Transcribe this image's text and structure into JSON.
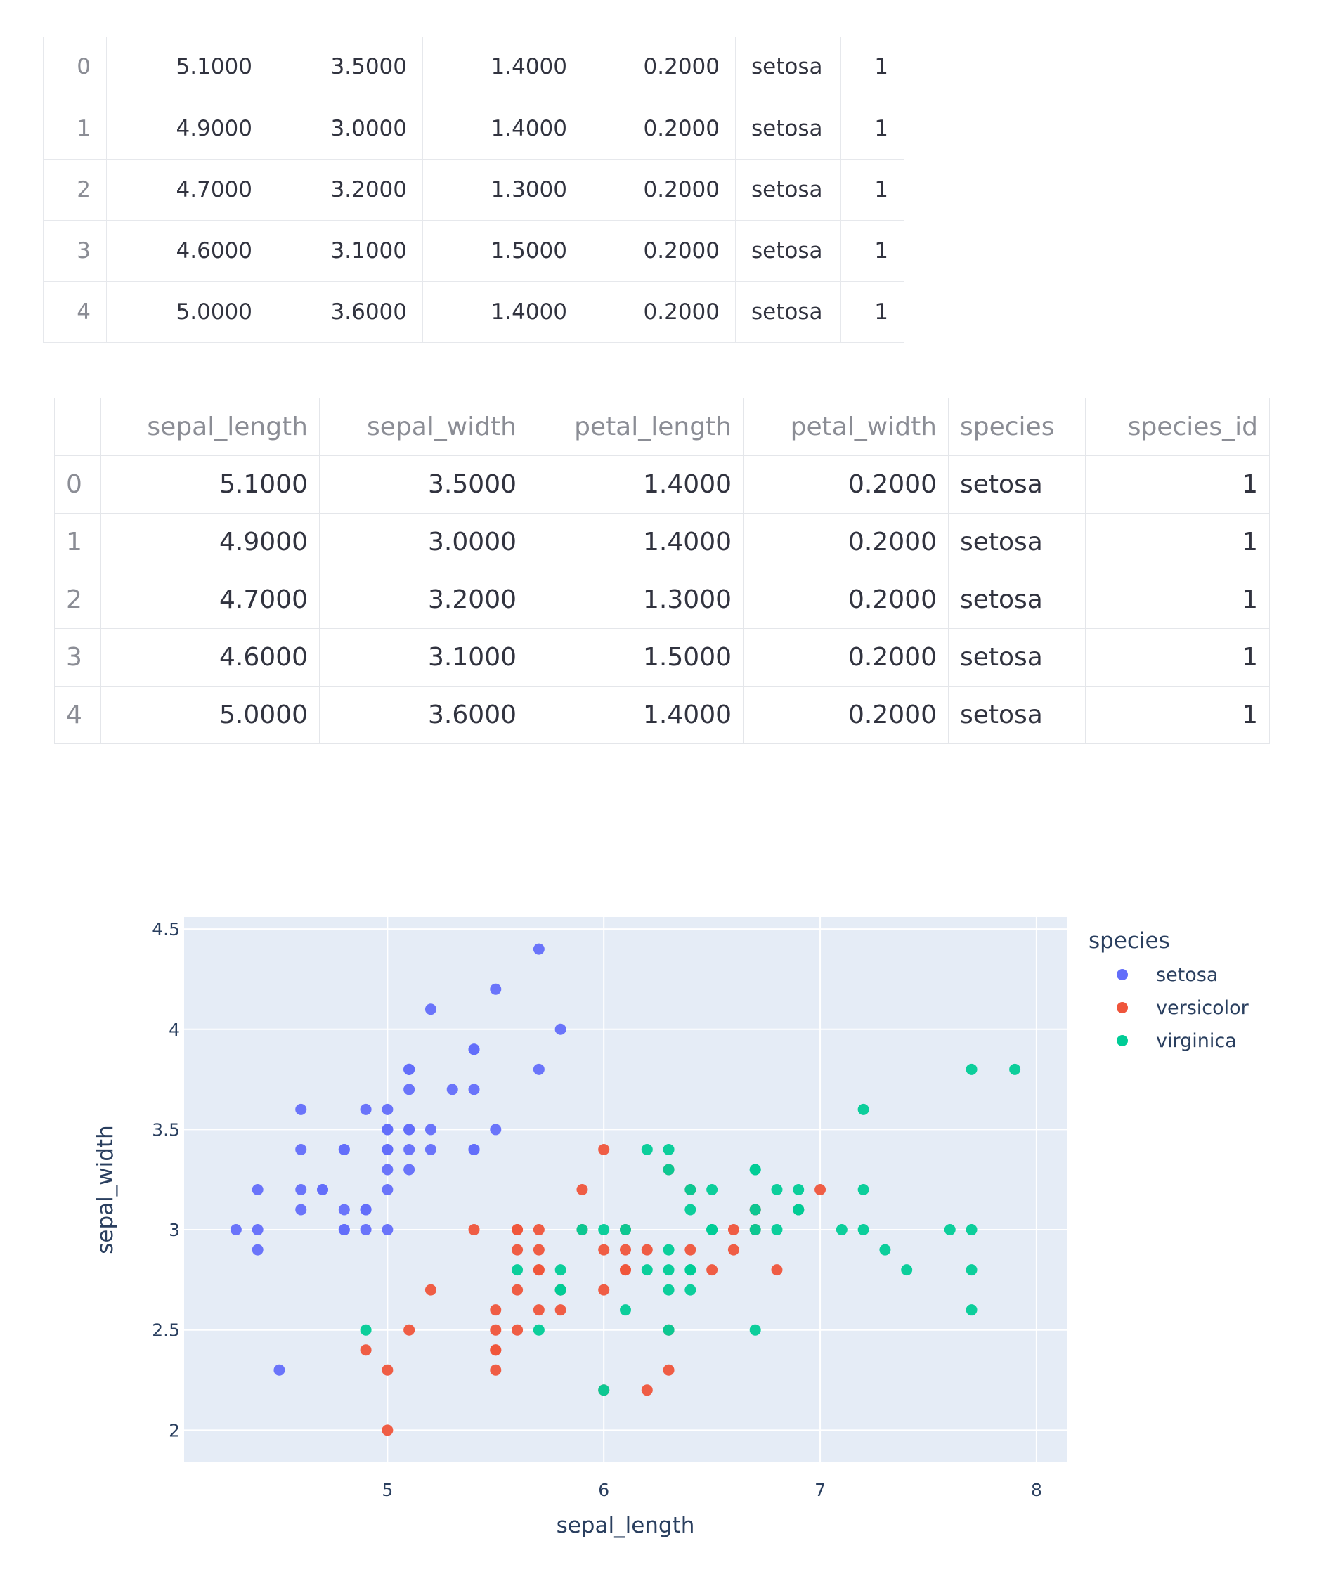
{
  "table_top": {
    "rows": [
      {
        "index": "0",
        "sepal_length": "5.1000",
        "sepal_width": "3.5000",
        "petal_length": "1.4000",
        "petal_width": "0.2000",
        "species": "setosa",
        "species_id": "1"
      },
      {
        "index": "1",
        "sepal_length": "4.9000",
        "sepal_width": "3.0000",
        "petal_length": "1.4000",
        "petal_width": "0.2000",
        "species": "setosa",
        "species_id": "1"
      },
      {
        "index": "2",
        "sepal_length": "4.7000",
        "sepal_width": "3.2000",
        "petal_length": "1.3000",
        "petal_width": "0.2000",
        "species": "setosa",
        "species_id": "1"
      },
      {
        "index": "3",
        "sepal_length": "4.6000",
        "sepal_width": "3.1000",
        "petal_length": "1.5000",
        "petal_width": "0.2000",
        "species": "setosa",
        "species_id": "1"
      },
      {
        "index": "4",
        "sepal_length": "5.0000",
        "sepal_width": "3.6000",
        "petal_length": "1.4000",
        "petal_width": "0.2000",
        "species": "setosa",
        "species_id": "1"
      }
    ]
  },
  "table_main": {
    "headers": [
      "",
      "sepal_length",
      "sepal_width",
      "petal_length",
      "petal_width",
      "species",
      "species_id"
    ],
    "rows": [
      {
        "index": "0",
        "sepal_length": "5.1000",
        "sepal_width": "3.5000",
        "petal_length": "1.4000",
        "petal_width": "0.2000",
        "species": "setosa",
        "species_id": "1"
      },
      {
        "index": "1",
        "sepal_length": "4.9000",
        "sepal_width": "3.0000",
        "petal_length": "1.4000",
        "petal_width": "0.2000",
        "species": "setosa",
        "species_id": "1"
      },
      {
        "index": "2",
        "sepal_length": "4.7000",
        "sepal_width": "3.2000",
        "petal_length": "1.3000",
        "petal_width": "0.2000",
        "species": "setosa",
        "species_id": "1"
      },
      {
        "index": "3",
        "sepal_length": "4.6000",
        "sepal_width": "3.1000",
        "petal_length": "1.5000",
        "petal_width": "0.2000",
        "species": "setosa",
        "species_id": "1"
      },
      {
        "index": "4",
        "sepal_length": "5.0000",
        "sepal_width": "3.6000",
        "petal_length": "1.4000",
        "petal_width": "0.2000",
        "species": "setosa",
        "species_id": "1"
      }
    ]
  },
  "chart_data": {
    "type": "scatter",
    "xlabel": "sepal_length",
    "ylabel": "sepal_width",
    "xlim": [
      4.06,
      8.14
    ],
    "ylim": [
      1.84,
      4.56
    ],
    "x_ticks": [
      "5",
      "6",
      "7",
      "8"
    ],
    "y_ticks": [
      "2",
      "2.5",
      "3",
      "3.5",
      "4",
      "4.5"
    ],
    "grid": true,
    "plot_bg": "#e5ecf6",
    "legend": {
      "title": "species",
      "placement": "right"
    },
    "series": [
      {
        "name": "setosa",
        "color": "#636efa",
        "points": [
          [
            5.1,
            3.5
          ],
          [
            4.9,
            3.0
          ],
          [
            4.7,
            3.2
          ],
          [
            4.6,
            3.1
          ],
          [
            5.0,
            3.6
          ],
          [
            5.4,
            3.9
          ],
          [
            4.6,
            3.4
          ],
          [
            5.0,
            3.4
          ],
          [
            4.4,
            2.9
          ],
          [
            4.9,
            3.1
          ],
          [
            5.4,
            3.7
          ],
          [
            4.8,
            3.4
          ],
          [
            4.8,
            3.0
          ],
          [
            4.3,
            3.0
          ],
          [
            5.8,
            4.0
          ],
          [
            5.7,
            4.4
          ],
          [
            5.4,
            3.9
          ],
          [
            5.1,
            3.5
          ],
          [
            5.7,
            3.8
          ],
          [
            5.1,
            3.8
          ],
          [
            5.4,
            3.4
          ],
          [
            5.1,
            3.7
          ],
          [
            4.6,
            3.6
          ],
          [
            5.1,
            3.3
          ],
          [
            4.8,
            3.4
          ],
          [
            5.0,
            3.0
          ],
          [
            5.0,
            3.4
          ],
          [
            5.2,
            3.5
          ],
          [
            5.2,
            3.4
          ],
          [
            4.7,
            3.2
          ],
          [
            4.8,
            3.1
          ],
          [
            5.4,
            3.4
          ],
          [
            5.2,
            4.1
          ],
          [
            5.5,
            4.2
          ],
          [
            4.9,
            3.1
          ],
          [
            5.0,
            3.2
          ],
          [
            5.5,
            3.5
          ],
          [
            4.9,
            3.6
          ],
          [
            4.4,
            3.0
          ],
          [
            5.1,
            3.4
          ],
          [
            5.0,
            3.5
          ],
          [
            4.5,
            2.3
          ],
          [
            4.4,
            3.2
          ],
          [
            5.0,
            3.5
          ],
          [
            5.1,
            3.8
          ],
          [
            4.8,
            3.0
          ],
          [
            5.1,
            3.8
          ],
          [
            4.6,
            3.2
          ],
          [
            5.3,
            3.7
          ],
          [
            5.0,
            3.3
          ]
        ]
      },
      {
        "name": "versicolor",
        "color": "#ef553b",
        "points": [
          [
            7.0,
            3.2
          ],
          [
            6.4,
            3.2
          ],
          [
            6.9,
            3.1
          ],
          [
            5.5,
            2.3
          ],
          [
            6.5,
            2.8
          ],
          [
            5.7,
            2.8
          ],
          [
            6.3,
            3.3
          ],
          [
            4.9,
            2.4
          ],
          [
            6.6,
            2.9
          ],
          [
            5.2,
            2.7
          ],
          [
            5.0,
            2.0
          ],
          [
            5.9,
            3.0
          ],
          [
            6.0,
            2.2
          ],
          [
            6.1,
            2.9
          ],
          [
            5.6,
            2.9
          ],
          [
            6.7,
            3.1
          ],
          [
            5.6,
            3.0
          ],
          [
            5.8,
            2.7
          ],
          [
            6.2,
            2.2
          ],
          [
            5.6,
            2.5
          ],
          [
            5.9,
            3.2
          ],
          [
            6.1,
            2.8
          ],
          [
            6.3,
            2.5
          ],
          [
            6.1,
            2.8
          ],
          [
            6.4,
            2.9
          ],
          [
            6.6,
            3.0
          ],
          [
            6.8,
            2.8
          ],
          [
            6.7,
            3.0
          ],
          [
            6.0,
            2.9
          ],
          [
            5.7,
            2.6
          ],
          [
            5.5,
            2.4
          ],
          [
            5.5,
            2.4
          ],
          [
            5.8,
            2.7
          ],
          [
            6.0,
            2.7
          ],
          [
            5.4,
            3.0
          ],
          [
            6.0,
            3.4
          ],
          [
            6.7,
            3.1
          ],
          [
            6.3,
            2.3
          ],
          [
            5.6,
            3.0
          ],
          [
            5.5,
            2.5
          ],
          [
            5.5,
            2.6
          ],
          [
            6.1,
            3.0
          ],
          [
            5.8,
            2.6
          ],
          [
            5.0,
            2.3
          ],
          [
            5.6,
            2.7
          ],
          [
            5.7,
            3.0
          ],
          [
            5.7,
            2.9
          ],
          [
            6.2,
            2.9
          ],
          [
            5.1,
            2.5
          ],
          [
            5.7,
            2.8
          ]
        ]
      },
      {
        "name": "virginica",
        "color": "#00cc96",
        "points": [
          [
            6.3,
            3.3
          ],
          [
            5.8,
            2.7
          ],
          [
            7.1,
            3.0
          ],
          [
            6.3,
            2.9
          ],
          [
            6.5,
            3.0
          ],
          [
            7.6,
            3.0
          ],
          [
            4.9,
            2.5
          ],
          [
            7.3,
            2.9
          ],
          [
            6.7,
            2.5
          ],
          [
            7.2,
            3.6
          ],
          [
            6.5,
            3.2
          ],
          [
            6.4,
            2.7
          ],
          [
            6.8,
            3.0
          ],
          [
            5.7,
            2.5
          ],
          [
            5.8,
            2.8
          ],
          [
            6.4,
            3.2
          ],
          [
            6.5,
            3.0
          ],
          [
            7.7,
            3.8
          ],
          [
            7.7,
            2.6
          ],
          [
            6.0,
            2.2
          ],
          [
            6.9,
            3.2
          ],
          [
            5.6,
            2.8
          ],
          [
            7.7,
            2.8
          ],
          [
            6.3,
            2.7
          ],
          [
            6.7,
            3.3
          ],
          [
            7.2,
            3.2
          ],
          [
            6.2,
            2.8
          ],
          [
            6.1,
            3.0
          ],
          [
            6.4,
            2.8
          ],
          [
            7.2,
            3.0
          ],
          [
            7.4,
            2.8
          ],
          [
            7.9,
            3.8
          ],
          [
            6.4,
            2.8
          ],
          [
            6.3,
            2.8
          ],
          [
            6.1,
            2.6
          ],
          [
            7.7,
            3.0
          ],
          [
            6.3,
            3.4
          ],
          [
            6.4,
            3.1
          ],
          [
            6.0,
            3.0
          ],
          [
            6.9,
            3.1
          ],
          [
            6.7,
            3.1
          ],
          [
            6.9,
            3.1
          ],
          [
            5.8,
            2.7
          ],
          [
            6.8,
            3.2
          ],
          [
            6.7,
            3.3
          ],
          [
            6.7,
            3.0
          ],
          [
            6.3,
            2.5
          ],
          [
            6.5,
            3.0
          ],
          [
            6.2,
            3.4
          ],
          [
            5.9,
            3.0
          ]
        ]
      }
    ]
  }
}
